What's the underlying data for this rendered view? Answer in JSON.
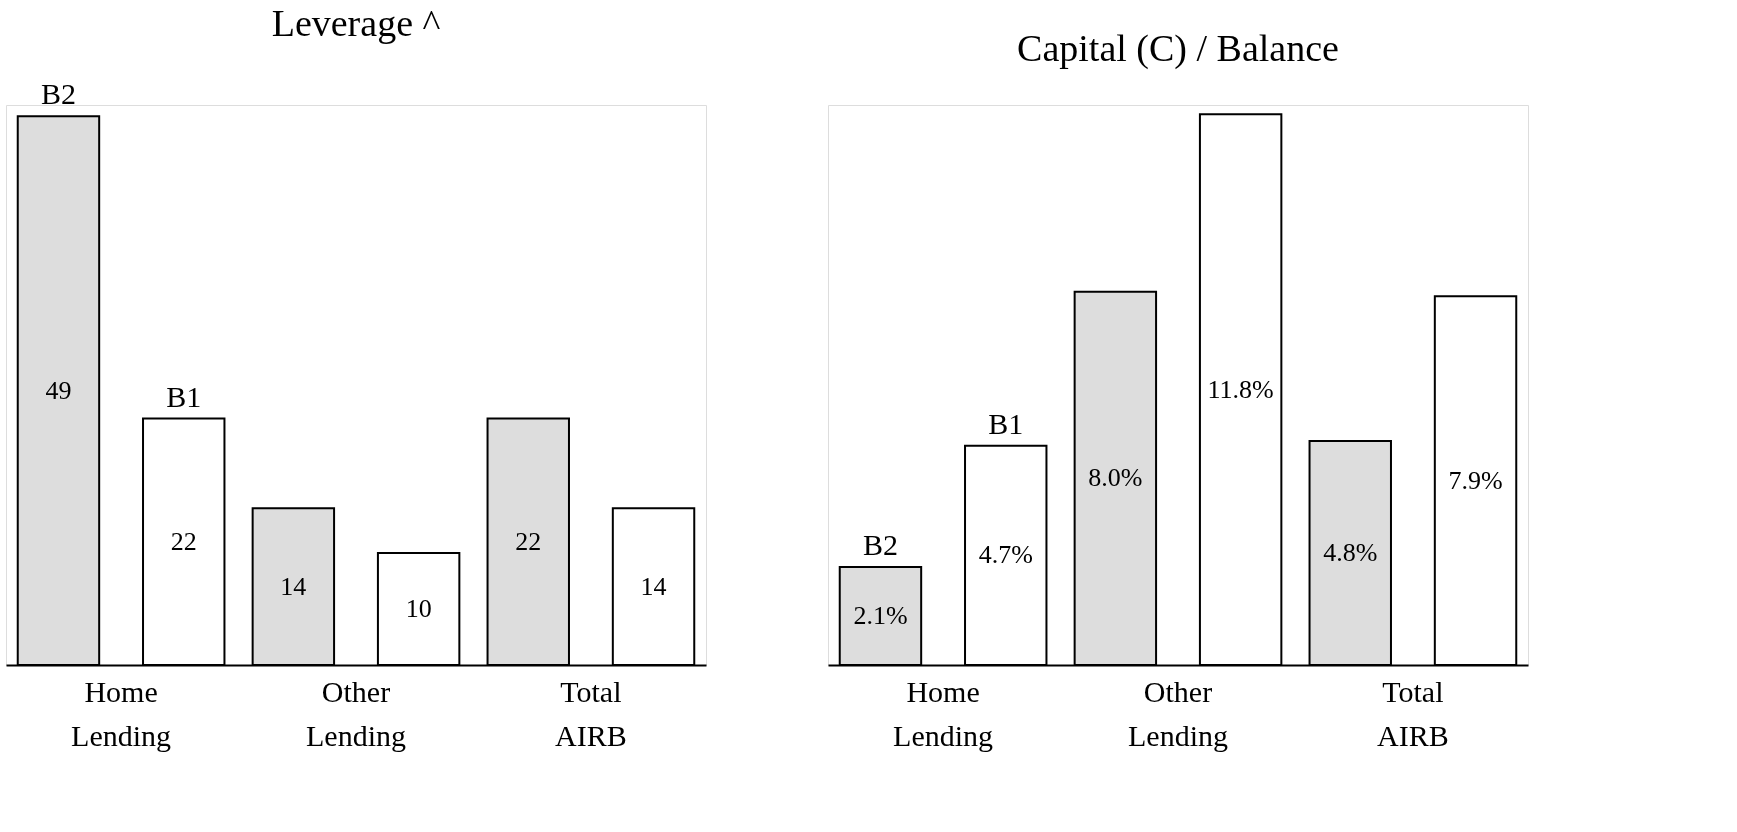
{
  "chart_data": [
    {
      "type": "bar",
      "title": "Leverage ^",
      "categories": [
        "Home Lending",
        "Other Lending",
        "Total AIRB"
      ],
      "data_labels": true,
      "series": [
        {
          "name": "B2",
          "color": "#dddddd",
          "values": [
            49,
            14,
            22
          ]
        },
        {
          "name": "B1",
          "color": "#ffffff",
          "values": [
            22,
            10,
            14
          ]
        }
      ]
    },
    {
      "type": "bar",
      "title": "Capital (C) / Balance",
      "categories": [
        "Home Lending",
        "Other Lending",
        "Total AIRB"
      ],
      "series": [
        {
          "name": "B2",
          "color": "#dddddd",
          "values": [
            2.1,
            8.0,
            4.8
          ],
          "value_labels": [
            "2.1%",
            "8.0%",
            "4.8%"
          ]
        },
        {
          "name": "B1",
          "color": "#ffffff",
          "values": [
            4.7,
            11.8,
            7.9
          ],
          "value_labels": [
            "4.7%",
            "11.8%",
            "7.9%"
          ]
        }
      ]
    }
  ]
}
